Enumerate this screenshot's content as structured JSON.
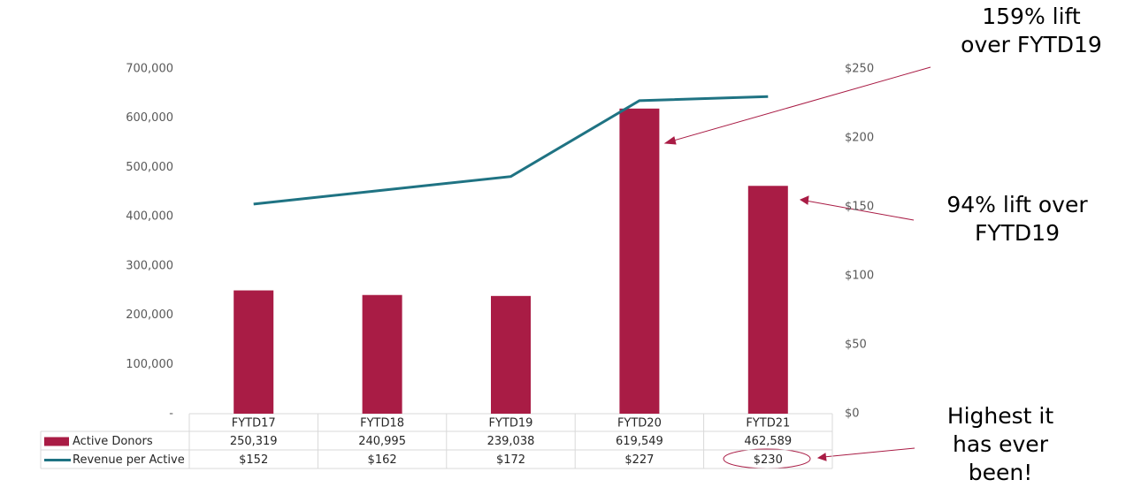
{
  "chart_data": {
    "type": "bar-line",
    "categories": [
      "FYTD17",
      "FYTD18",
      "FYTD19",
      "FYTD20",
      "FYTD21"
    ],
    "series": [
      {
        "name": "Active Donors",
        "type": "bar",
        "color": "#a91c45",
        "axis": "y",
        "values": [
          250319,
          240995,
          239038,
          619549,
          462589
        ],
        "value_labels": [
          "250,319",
          "240,995",
          "239,038",
          "619,549",
          "462,589"
        ]
      },
      {
        "name": "Revenue per Active",
        "type": "line",
        "color": "#1f7383",
        "axis": "y2",
        "values": [
          152,
          162,
          172,
          227,
          230
        ],
        "value_labels": [
          "$152",
          "$162",
          "$172",
          "$227",
          "$230"
        ]
      }
    ],
    "ylim": [
      0,
      700000
    ],
    "yticks": [
      {
        "value": 0,
        "label": "-"
      },
      {
        "value": 100000,
        "label": "100,000"
      },
      {
        "value": 200000,
        "label": "200,000"
      },
      {
        "value": 300000,
        "label": "300,000"
      },
      {
        "value": 400000,
        "label": "400,000"
      },
      {
        "value": 500000,
        "label": "500,000"
      },
      {
        "value": 600000,
        "label": "600,000"
      },
      {
        "value": 700000,
        "label": "700,000"
      }
    ],
    "y2lim": [
      0,
      250
    ],
    "y2ticks": [
      {
        "value": 0,
        "label": "$0"
      },
      {
        "value": 50,
        "label": "$50"
      },
      {
        "value": 100,
        "label": "$100"
      },
      {
        "value": 150,
        "label": "$150"
      },
      {
        "value": 200,
        "label": "$200"
      },
      {
        "value": 250,
        "label": "$250"
      }
    ],
    "annotations": [
      {
        "lines": [
          "159% lift",
          "over FYTD19"
        ]
      },
      {
        "lines": [
          "94% lift over",
          "FYTD19"
        ]
      },
      {
        "lines": [
          "Highest it",
          "has ever",
          "been!"
        ]
      }
    ]
  }
}
